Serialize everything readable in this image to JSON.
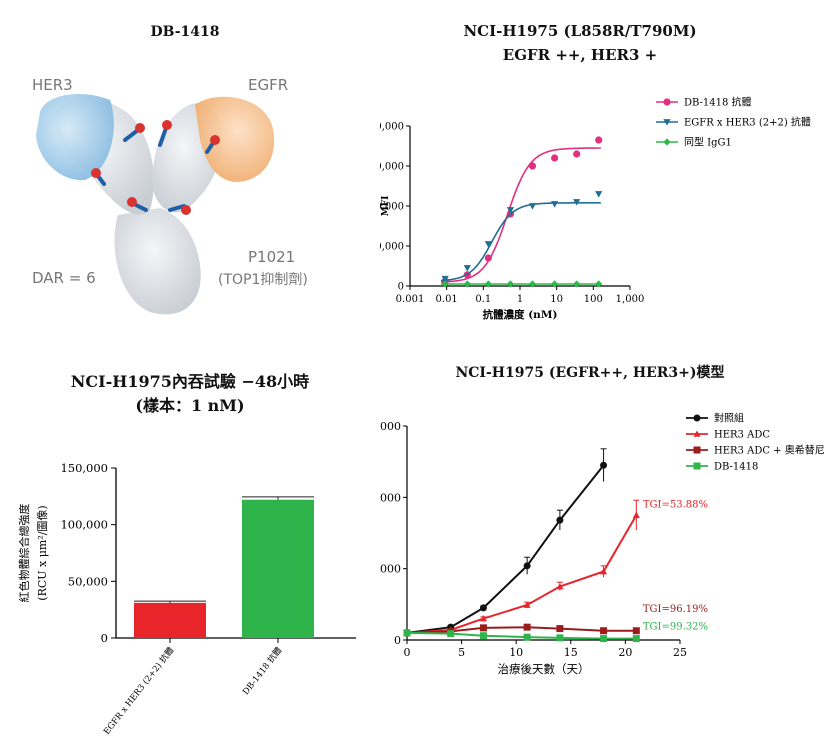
{
  "panel_a": {
    "title": "DB-1418",
    "labels": {
      "her3": "HER3",
      "egfr": "EGFR",
      "dar": "DAR = 6",
      "payload": "P1021",
      "payload_note": "(TOP1抑制劑)"
    },
    "colors": {
      "her3": "#9cc8e6",
      "egfr": "#f5b987",
      "body": "#e2e5e9",
      "linker": "#1f5fa8",
      "payload": "#d9322f"
    }
  },
  "chart_data": [
    {
      "id": "binding",
      "type": "scatter",
      "title": "NCI-H1975 (L858R/T790M)",
      "subtitle": "EGFR ++, HER3 +",
      "xlabel": "抗體濃度 (nM)",
      "ylabel": "MFI",
      "xscale": "log",
      "xlim": [
        0.001,
        1000
      ],
      "ylim": [
        0,
        40000
      ],
      "x_ticks": [
        "0.001",
        "0.01",
        "0.1",
        "1",
        "10",
        "100",
        "1,000"
      ],
      "y_ticks": [
        "0",
        "10,000",
        "20,000",
        "30,000",
        "40,000"
      ],
      "legend_position": "top-right",
      "series": [
        {
          "name": "DB-1418 抗體",
          "color": "#e0307f",
          "marker": "circle",
          "x": [
            0.0091,
            0.0366,
            0.137,
            0.549,
            2.19,
            8.78,
            35.1,
            140
          ],
          "y": [
            1200,
            2800,
            7000,
            18000,
            30000,
            32000,
            33000,
            36500
          ],
          "fit": {
            "bottom": 900,
            "top": 34500,
            "ec50": 0.45,
            "hill": 1.4
          }
        },
        {
          "name": "EGFR x HER3 (2+2) 抗體",
          "color": "#1f6e93",
          "marker": "triangle-down",
          "x": [
            0.0091,
            0.0366,
            0.137,
            0.549,
            2.19,
            8.78,
            35.1,
            140
          ],
          "y": [
            1800,
            4500,
            10500,
            19000,
            20000,
            20500,
            21000,
            23000
          ],
          "fit": {
            "bottom": 1200,
            "top": 20800,
            "ec50": 0.17,
            "hill": 1.5
          }
        },
        {
          "name": "同型 IgG1",
          "color": "#2db84a",
          "marker": "diamond",
          "x": [
            0.0091,
            0.0366,
            0.137,
            0.549,
            2.19,
            8.78,
            35.1,
            140
          ],
          "y": [
            500,
            500,
            500,
            500,
            500,
            500,
            500,
            500
          ],
          "fit": {
            "bottom": 500,
            "top": 500,
            "ec50": 1,
            "hill": 1
          }
        }
      ]
    },
    {
      "id": "internalization",
      "type": "bar",
      "title": "NCI-H1975內吞試驗 −48小時",
      "subtitle": "(樣本：1 nM)",
      "ylabel": "紅色物體綜合總強度",
      "ylabel2": "(RCU x μm²/圖像)",
      "ylim": [
        0,
        150000
      ],
      "y_ticks": [
        "0",
        "50,000",
        "100,000",
        "150,000"
      ],
      "categories": [
        "EGFR x HER3 (2+2) 抗體",
        "DB-1418 抗體"
      ],
      "values": [
        31000,
        122000
      ],
      "errors": [
        1500,
        2500
      ],
      "colors": [
        "#e8252b",
        "#2fb44c"
      ]
    },
    {
      "id": "xenograft",
      "type": "line",
      "title": "NCI-H1975 (EGFR++, HER3+)模型",
      "xlabel": "治療後天數（天）",
      "xlim": [
        0,
        25
      ],
      "ylim": [
        0,
        3000
      ],
      "x_ticks": [
        "0",
        "5",
        "10",
        "15",
        "20",
        "25"
      ],
      "y_ticks": [
        "0",
        "1,000",
        "2,000",
        "3,000"
      ],
      "legend_position": "top-right",
      "series": [
        {
          "name": "對照組",
          "color": "#111111",
          "marker": "circle",
          "x": [
            0,
            4,
            7,
            11,
            14,
            18
          ],
          "y": [
            100,
            180,
            450,
            1040,
            1680,
            2450
          ],
          "err": [
            0,
            20,
            30,
            120,
            140,
            230
          ]
        },
        {
          "name": "HER3 ADC",
          "color": "#e8252b",
          "marker": "triangle",
          "x": [
            0,
            4,
            7,
            11,
            14,
            18,
            21
          ],
          "y": [
            100,
            140,
            300,
            490,
            750,
            960,
            1750
          ],
          "err": [
            0,
            15,
            25,
            40,
            60,
            80,
            210
          ]
        },
        {
          "name": "HER3 ADC + 奧希替尼",
          "color": "#9b1c1c",
          "marker": "square",
          "x": [
            0,
            4,
            7,
            11,
            14,
            18,
            21
          ],
          "y": [
            100,
            120,
            170,
            180,
            160,
            130,
            130
          ],
          "err": [
            0,
            10,
            15,
            15,
            15,
            10,
            10
          ]
        },
        {
          "name": "DB-1418",
          "color": "#2fb44c",
          "marker": "square",
          "x": [
            0,
            4,
            7,
            11,
            14,
            18,
            21
          ],
          "y": [
            100,
            90,
            60,
            40,
            30,
            20,
            20
          ],
          "err": [
            0,
            8,
            8,
            5,
            5,
            5,
            5
          ]
        }
      ],
      "annotations": [
        {
          "text": "TGI=53.88%",
          "color": "#e8252b",
          "x": 21.6,
          "y": 1860
        },
        {
          "text": "TGI=96.19%",
          "color": "#9b1c1c",
          "x": 21.6,
          "y": 390
        },
        {
          "text": "TGI=99.32%",
          "color": "#2fb44c",
          "x": 21.6,
          "y": 150
        }
      ]
    }
  ]
}
